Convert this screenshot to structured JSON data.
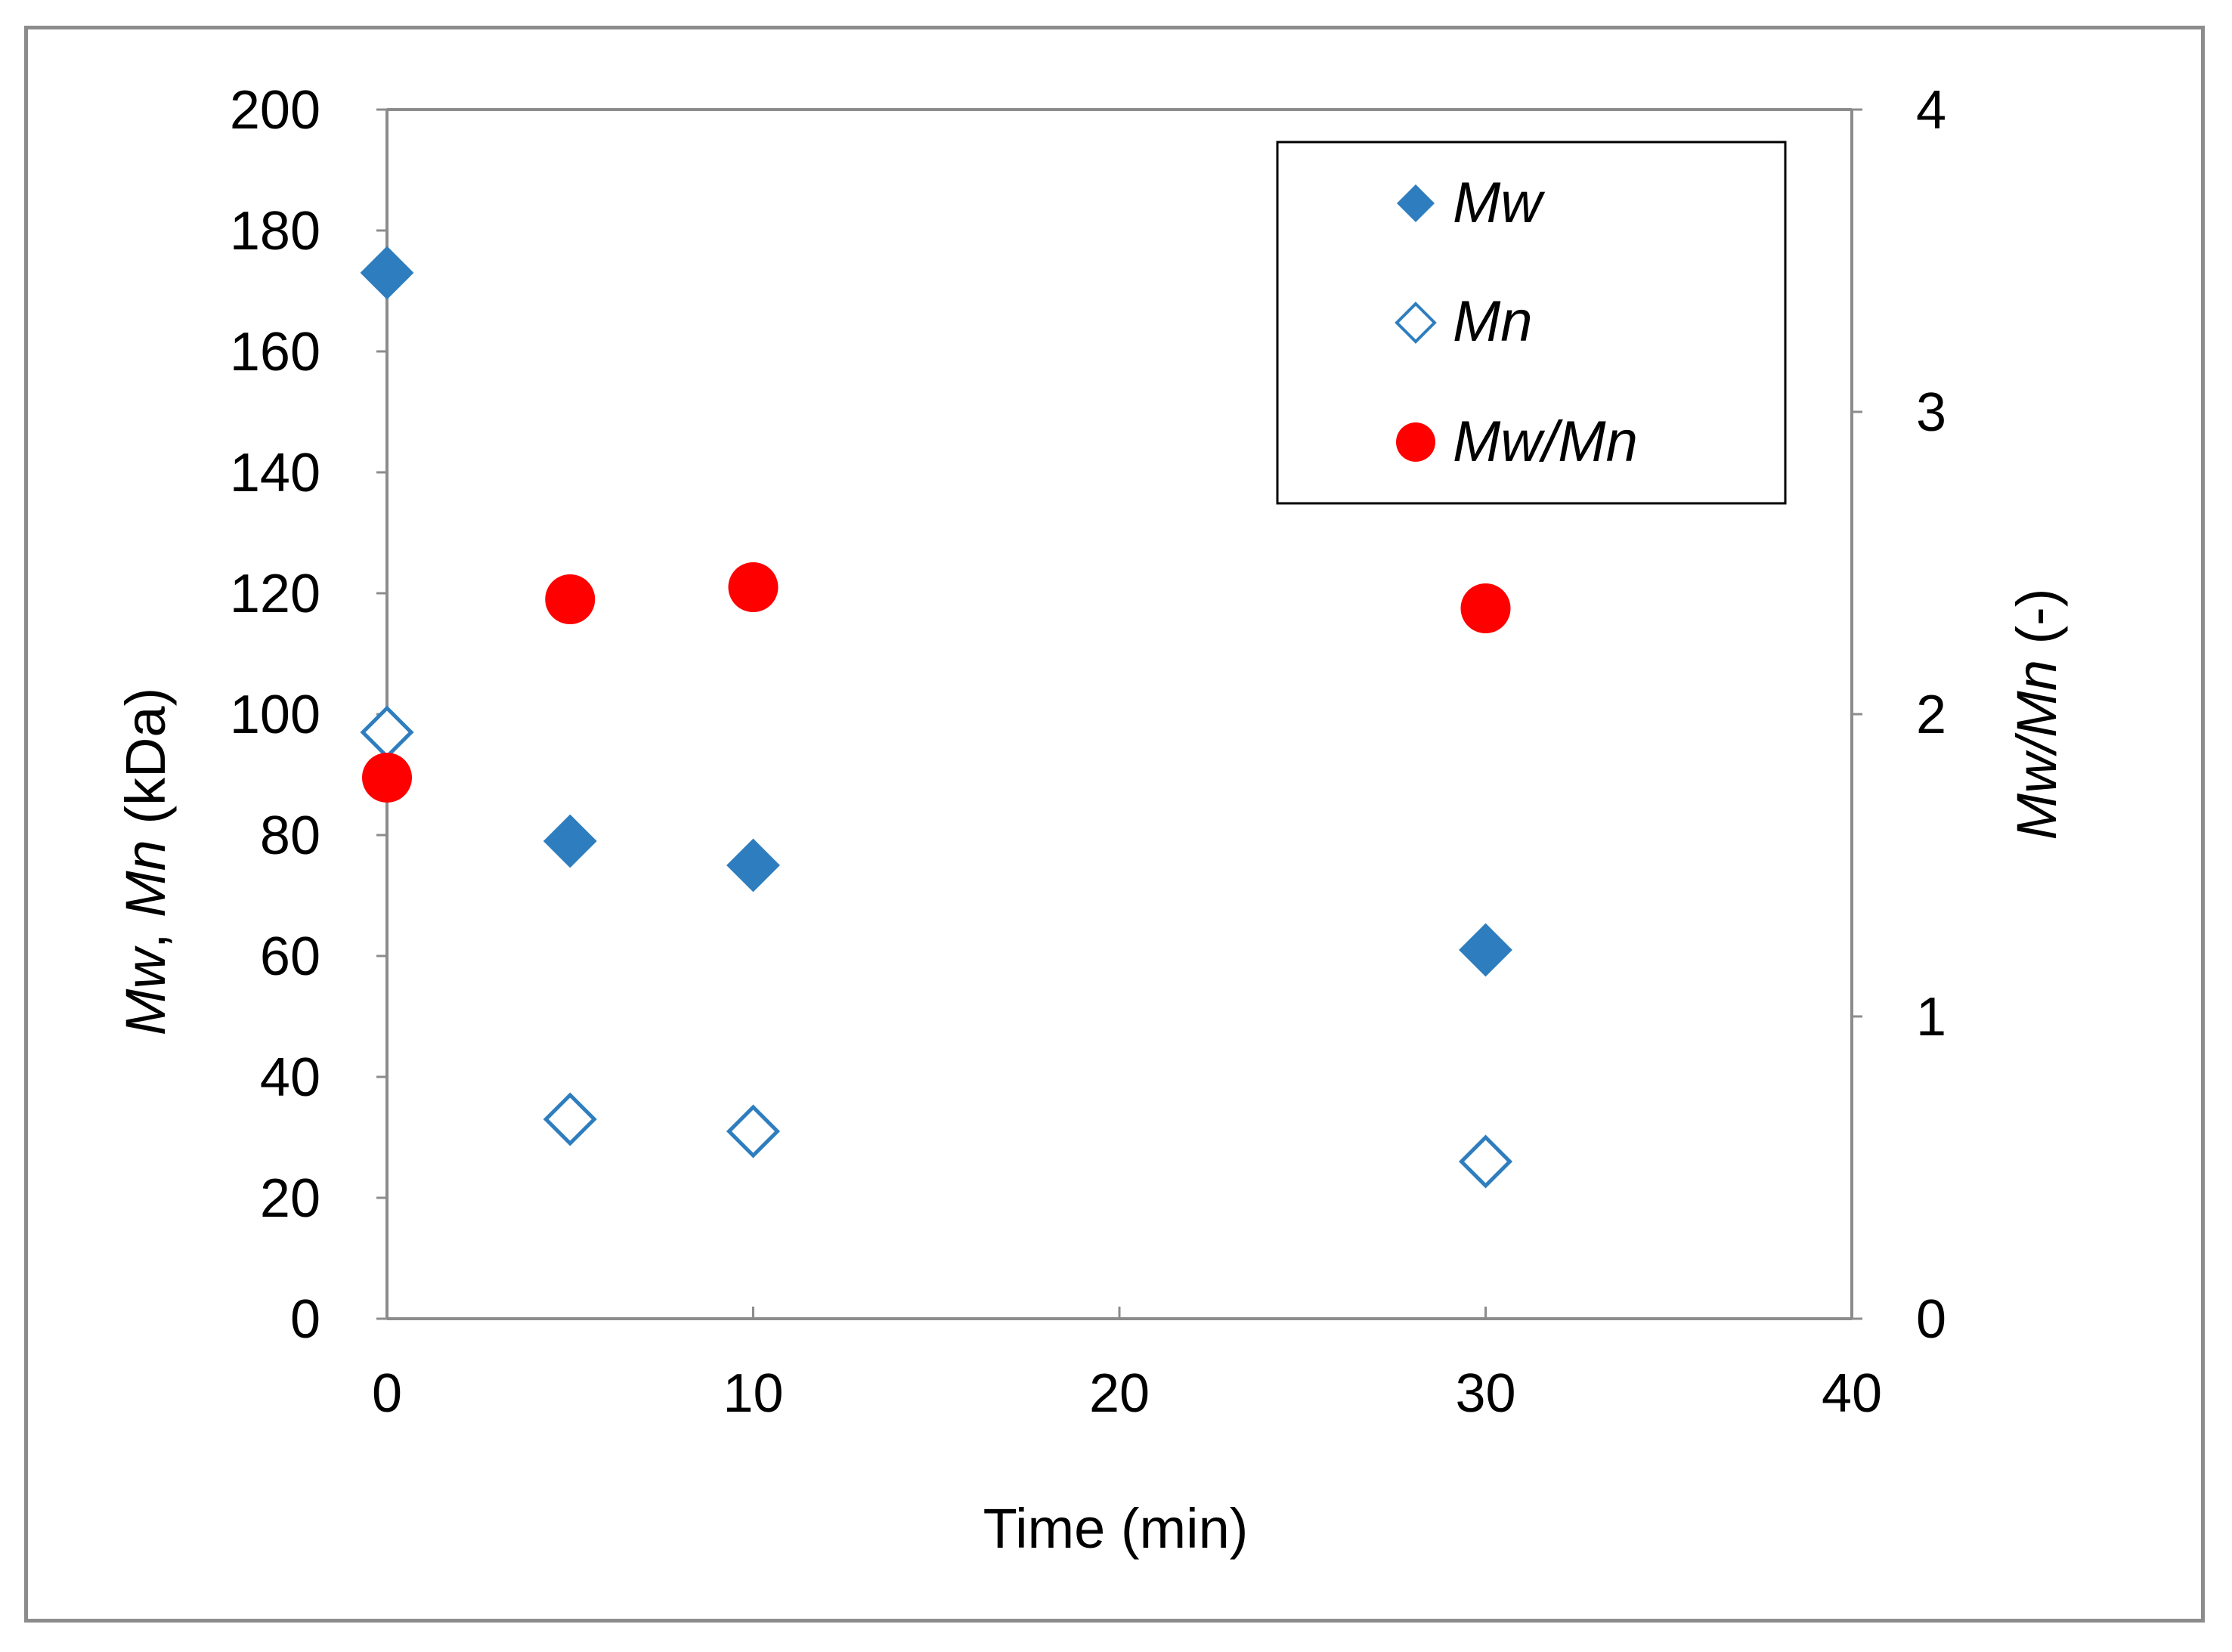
{
  "chart_data": {
    "type": "scatter",
    "title": "",
    "x": [
      0,
      5,
      10,
      30
    ],
    "xlabel": "Time (min)",
    "xlim": [
      0,
      40
    ],
    "xticks": [
      "0",
      "10",
      "20",
      "30",
      "40"
    ],
    "xtick_values": [
      0,
      10,
      20,
      30,
      40
    ],
    "ylabel": {
      "mw": "Mw",
      "sep": ", ",
      "mn": "Mn",
      "unit": " (kDa)"
    },
    "ylim": [
      0,
      200
    ],
    "yticks": [
      "0",
      "20",
      "40",
      "60",
      "80",
      "100",
      "120",
      "140",
      "160",
      "180",
      "200"
    ],
    "ytick_values": [
      0,
      20,
      40,
      60,
      80,
      100,
      120,
      140,
      160,
      180,
      200
    ],
    "y2label": {
      "ratio": "Mw/Mn",
      "unit": " (-)"
    },
    "y2lim": [
      0,
      4
    ],
    "y2ticks": [
      "0",
      "1",
      "2",
      "3",
      "4"
    ],
    "y2tick_values": [
      0,
      1,
      2,
      3,
      4
    ],
    "grid": false,
    "legend_position": "top-right",
    "series": [
      {
        "name": "Mw",
        "axis": "left",
        "marker": "diamond-filled",
        "color": "#2e7ebf",
        "values": [
          173,
          79,
          75,
          61
        ]
      },
      {
        "name": "Mn",
        "axis": "left",
        "marker": "diamond-open",
        "color": "#2e7ebf",
        "values": [
          97,
          33,
          31,
          26
        ]
      },
      {
        "name": "Mw/Mn",
        "axis": "right",
        "marker": "circle-filled",
        "color": "#ff0000",
        "values": [
          1.79,
          2.38,
          2.42,
          2.35
        ]
      }
    ]
  },
  "colors": {
    "axis": "#8c8c8c",
    "frame": "#8c8c8c",
    "mw": "#2e7ebf",
    "mn": "#2e7ebf",
    "ratio": "#ff0000"
  }
}
